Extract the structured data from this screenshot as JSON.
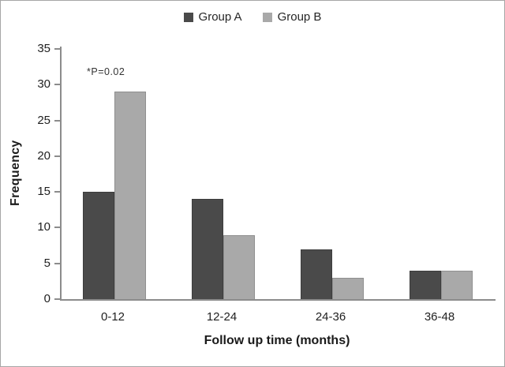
{
  "chart_data": {
    "type": "bar",
    "title": "",
    "categories": [
      "0-12",
      "12-24",
      "24-36",
      "36-48"
    ],
    "series": [
      {
        "name": "Group A",
        "color": "#4a4a4a",
        "border_color": "#3d3d3d",
        "values": [
          15,
          14,
          7,
          4
        ]
      },
      {
        "name": "Group B",
        "color": "#a9a9a9",
        "border_color": "#8f8f8f",
        "values": [
          29,
          9,
          3,
          4
        ]
      }
    ],
    "xlabel": "Follow up time (months)",
    "ylabel": "Frequency",
    "ylim": [
      0,
      35
    ],
    "yticks": [
      0,
      5,
      10,
      15,
      20,
      25,
      30,
      35
    ],
    "grid": false,
    "legend_position": "top-center",
    "annotation": {
      "text": "*P=0.02",
      "category": "0-12"
    },
    "axis_color": "#8c8c8c"
  }
}
